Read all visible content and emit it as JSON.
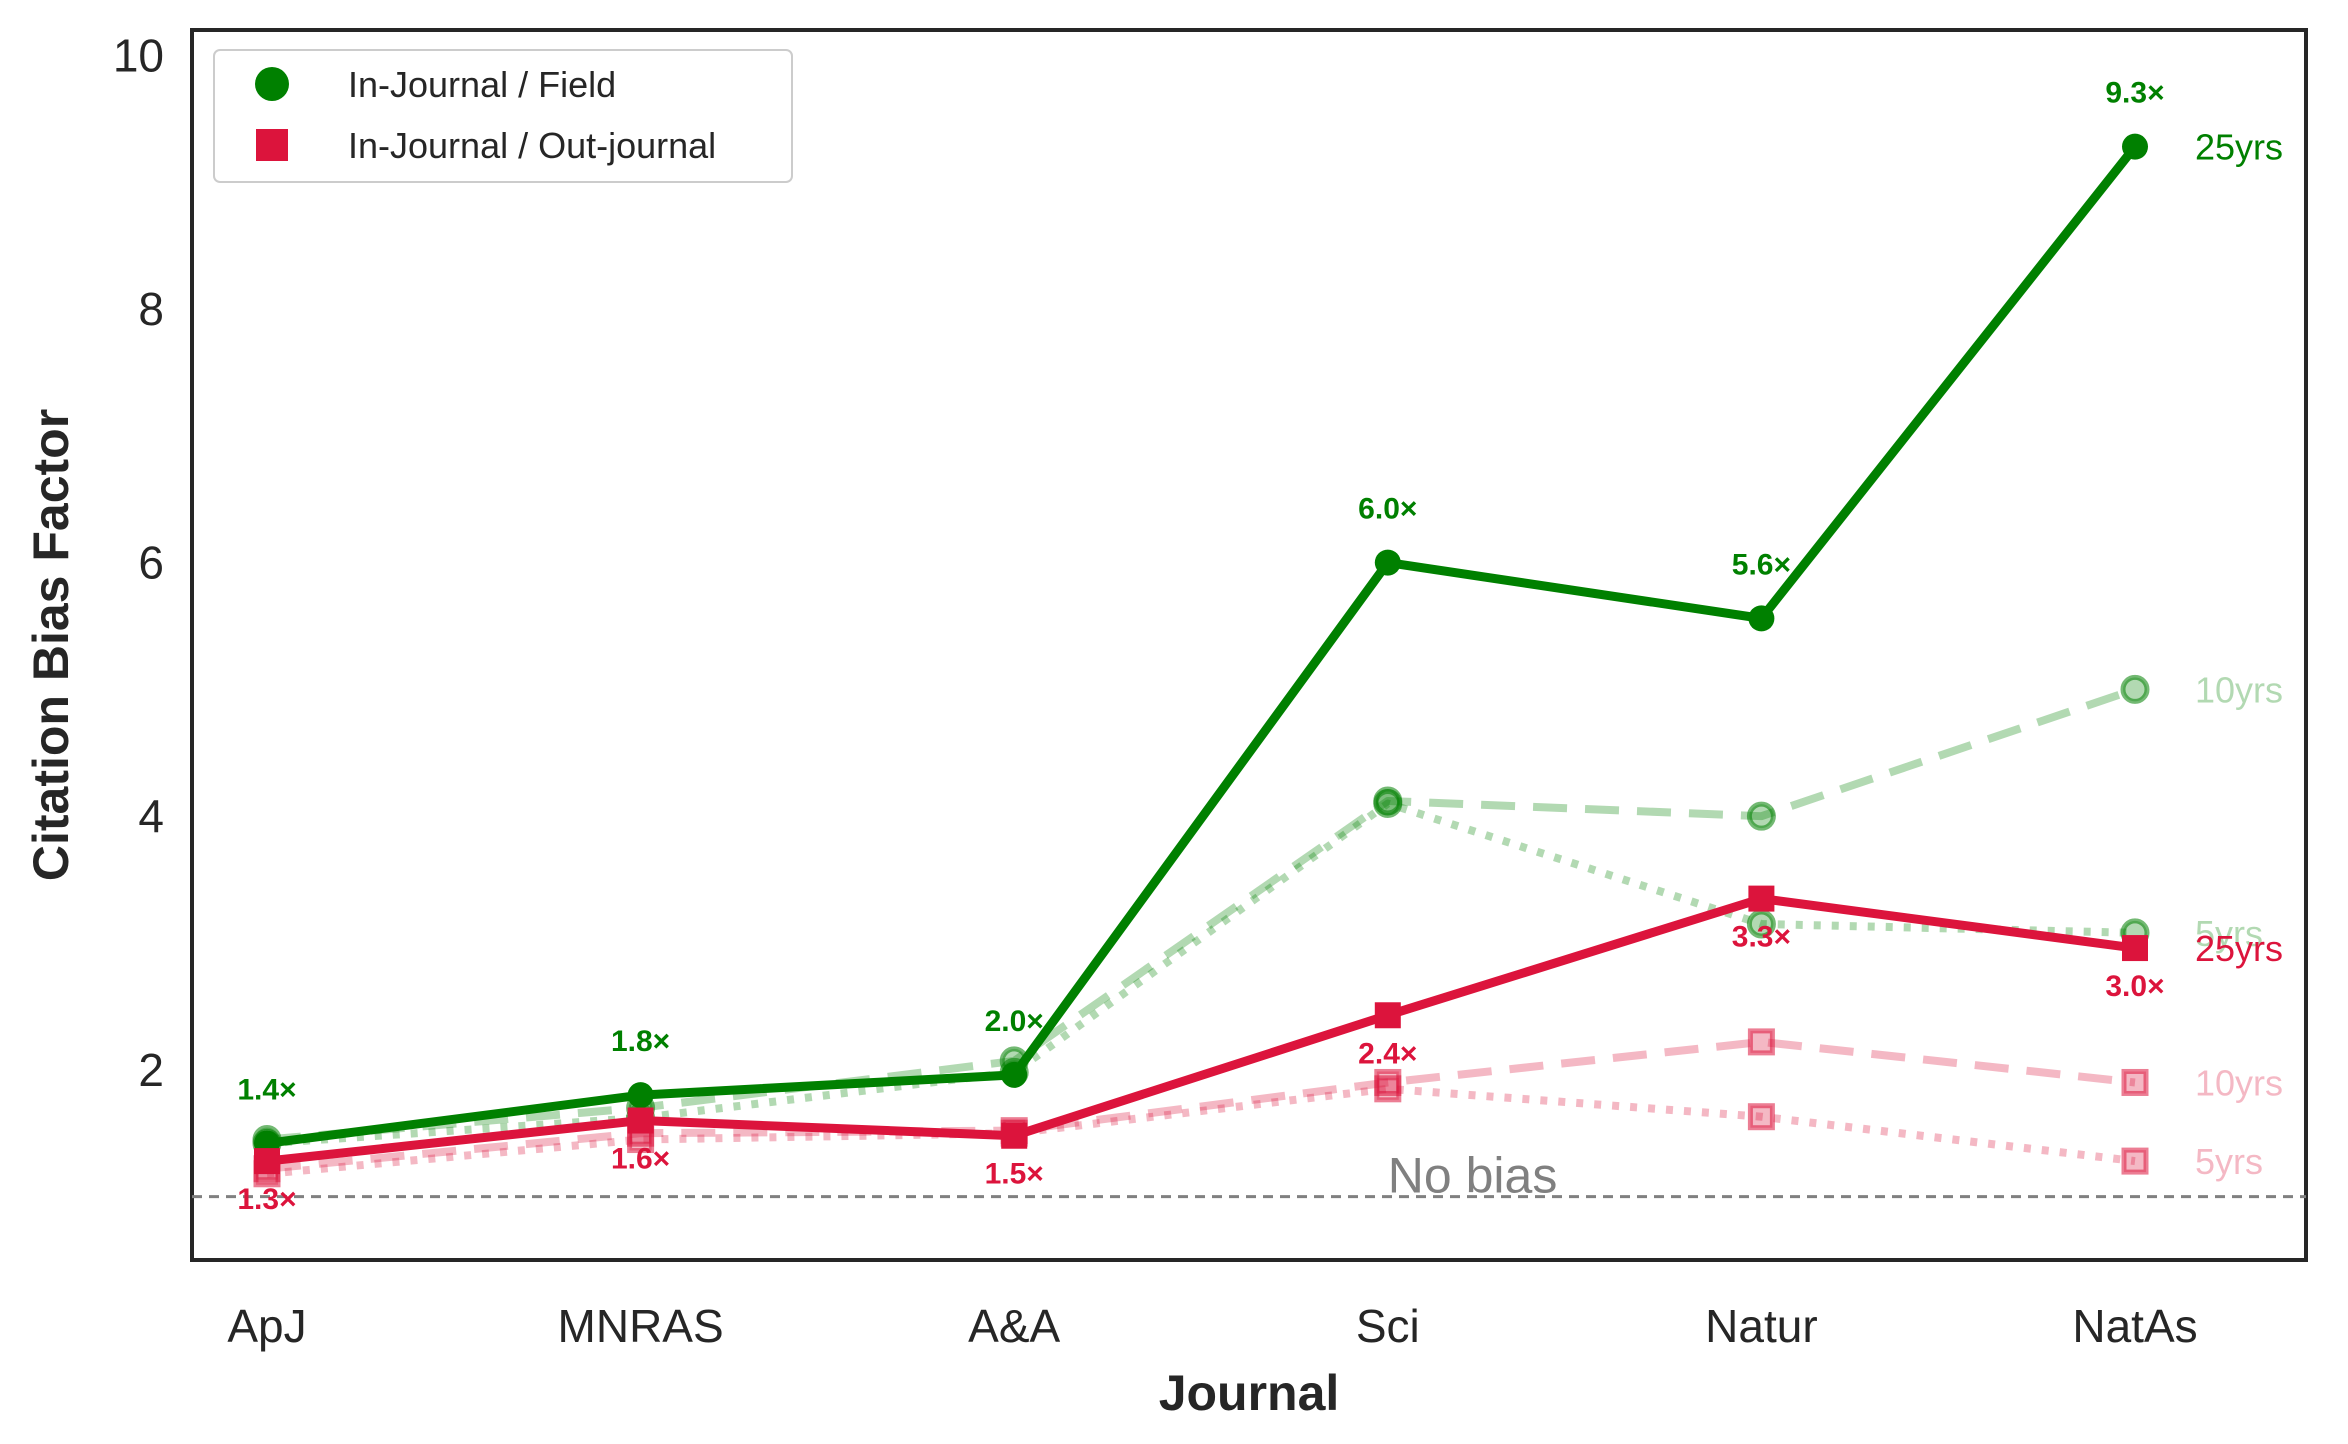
{
  "chart_data": {
    "type": "line",
    "categories": [
      "ApJ",
      "MNRAS",
      "A&A",
      "Sci",
      "Natur",
      "NatAs"
    ],
    "xlabel": "Journal",
    "ylabel": "Citation Bias Factor",
    "ylim": [
      0.5,
      10.2
    ],
    "yticks": [
      2,
      4,
      6,
      8,
      10
    ],
    "grid": false,
    "legend": {
      "placement": "top-left",
      "entries": [
        {
          "label": "In-Journal / Field",
          "color": "#008000",
          "marker": "circle"
        },
        {
          "label": "In-Journal / Out-journal",
          "color": "#DC143C",
          "marker": "square"
        }
      ]
    },
    "reference_line": {
      "y": 1.0,
      "label": "No bias",
      "color": "#808080"
    },
    "series": [
      {
        "group": "In-Journal / Field",
        "window": "25yrs",
        "color": "#008000",
        "marker": "circle",
        "style": "solid",
        "emphasis": "primary",
        "values": [
          1.42,
          1.8,
          1.96,
          6.0,
          5.56,
          9.28
        ]
      },
      {
        "group": "In-Journal / Field",
        "window": "10yrs",
        "color": "#008000",
        "marker": "circle",
        "style": "dashed",
        "emphasis": "faded",
        "values": [
          1.45,
          1.7,
          2.07,
          4.12,
          4.0,
          5.0
        ]
      },
      {
        "group": "In-Journal / Field",
        "window": "5yrs",
        "color": "#008000",
        "marker": "circle",
        "style": "dotted",
        "emphasis": "faded",
        "values": [
          1.42,
          1.62,
          1.98,
          4.1,
          3.15,
          3.08
        ]
      },
      {
        "group": "In-Journal / Out-journal",
        "window": "25yrs",
        "color": "#DC143C",
        "marker": "square",
        "style": "solid",
        "emphasis": "primary",
        "values": [
          1.28,
          1.6,
          1.48,
          2.43,
          3.35,
          2.96
        ]
      },
      {
        "group": "In-Journal / Out-journal",
        "window": "10yrs",
        "color": "#DC143C",
        "marker": "square",
        "style": "dashed",
        "emphasis": "faded",
        "values": [
          1.22,
          1.5,
          1.52,
          1.9,
          2.22,
          1.9
        ]
      },
      {
        "group": "In-Journal / Out-journal",
        "window": "5yrs",
        "color": "#DC143C",
        "marker": "square",
        "style": "dotted",
        "emphasis": "faded",
        "values": [
          1.18,
          1.45,
          1.5,
          1.85,
          1.63,
          1.28
        ]
      }
    ],
    "data_labels": {
      "field": [
        "1.4×",
        "1.8×",
        "2.0×",
        "6.0×",
        "5.6×",
        "9.3×"
      ],
      "out_journal": [
        "1.3×",
        "1.6×",
        "1.5×",
        "2.4×",
        "3.3×",
        "3.0×"
      ]
    },
    "end_labels": [
      {
        "text": "25yrs",
        "y": 9.28,
        "color": "#008000",
        "emphasis": "primary"
      },
      {
        "text": "10yrs",
        "y": 5.0,
        "color": "#008000",
        "emphasis": "faded"
      },
      {
        "text": "5yrs",
        "y": 3.08,
        "color": "#008000",
        "emphasis": "faded"
      },
      {
        "text": "25yrs",
        "y": 2.96,
        "color": "#DC143C",
        "emphasis": "primary"
      },
      {
        "text": "10yrs",
        "y": 1.9,
        "color": "#DC143C",
        "emphasis": "faded"
      },
      {
        "text": "5yrs",
        "y": 1.28,
        "color": "#DC143C",
        "emphasis": "faded"
      }
    ]
  }
}
